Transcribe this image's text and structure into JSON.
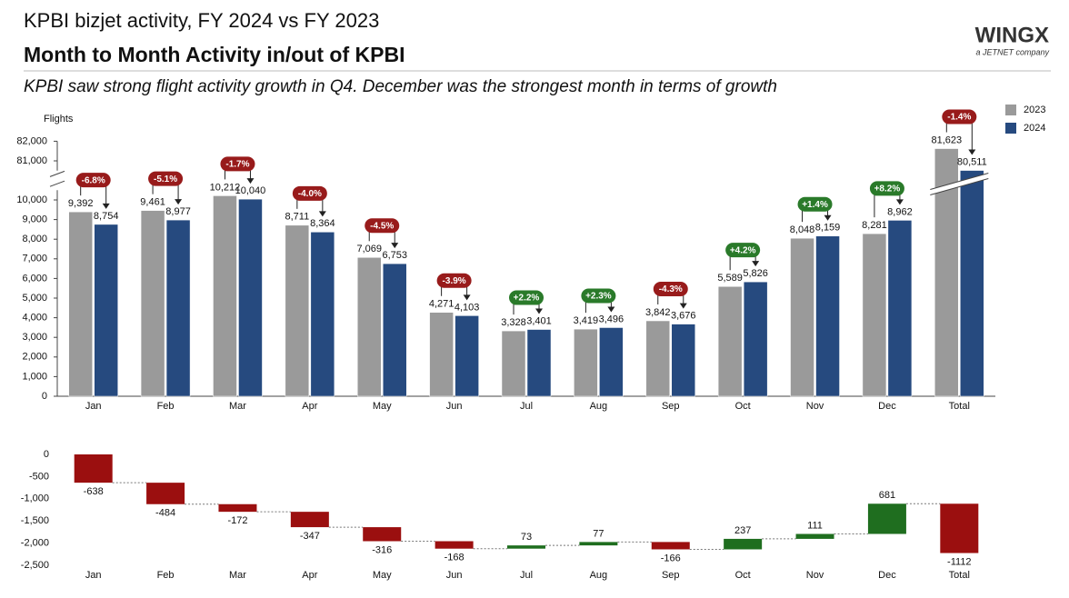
{
  "header": {
    "title": "KPBI bizjet activity, FY 2024 vs FY 2023",
    "subtitle": "Month to Month Activity in/out of KPBI",
    "description": "KPBI saw strong flight activity growth in Q4. December was the strongest month in terms of growth",
    "logo": "WINGX",
    "logo_tagline": "a JETNET company"
  },
  "chart_data": [
    {
      "type": "bar",
      "y_label": "Flights",
      "categories": [
        "Jan",
        "Feb",
        "Mar",
        "Apr",
        "May",
        "Jun",
        "Jul",
        "Aug",
        "Sep",
        "Oct",
        "Nov",
        "Dec",
        "Total"
      ],
      "series": [
        {
          "name": "2023",
          "color": "#9a9a9a",
          "values": [
            9392,
            9461,
            10212,
            8711,
            7069,
            4271,
            3328,
            3419,
            3842,
            5589,
            8048,
            8281,
            81623
          ],
          "value_labels": [
            "9,392",
            "9,461",
            "10,212",
            "8,711",
            "7,069",
            "4,271",
            "3,328",
            "3,419",
            "3,842",
            "5,589",
            "8,048",
            "8,281",
            "81,623"
          ]
        },
        {
          "name": "2024",
          "color": "#264a7f",
          "values": [
            8754,
            8977,
            10040,
            8364,
            6753,
            4103,
            3401,
            3496,
            3676,
            5826,
            8159,
            8962,
            80511
          ],
          "value_labels": [
            "8,754",
            "8,977",
            "10,040",
            "8,364",
            "6,753",
            "4,103",
            "3,401",
            "3,496",
            "3,676",
            "5,826",
            "8,159",
            "8,962",
            "80,511"
          ]
        }
      ],
      "changes": [
        -6.8,
        -5.1,
        -1.7,
        -4.0,
        -4.5,
        -3.9,
        2.2,
        2.3,
        -4.3,
        4.2,
        1.4,
        8.2,
        -1.4
      ],
      "change_labels": [
        "-6.8%",
        "-5.1%",
        "-1.7%",
        "-4.0%",
        "-4.5%",
        "-3.9%",
        "+2.2%",
        "+2.3%",
        "-4.3%",
        "+4.2%",
        "+1.4%",
        "+8.2%",
        "-1.4%"
      ],
      "positive_color": "#2a7a2a",
      "negative_color": "#981b1b",
      "ylim": [
        0,
        82000
      ],
      "axis_break": [
        10500,
        80500
      ],
      "yticks": [
        0,
        {
          "value": 1000,
          "label": "1,000"
        },
        {
          "value": 2000,
          "label": "2,000"
        },
        {
          "value": 3000,
          "label": "3,000"
        },
        {
          "value": 4000,
          "label": "4,000"
        },
        {
          "value": 5000,
          "label": "5,000"
        },
        {
          "value": 6000,
          "label": "6,000"
        },
        {
          "value": 7000,
          "label": "7,000"
        },
        {
          "value": 8000,
          "label": "8,000"
        },
        {
          "value": 9000,
          "label": "9,000"
        },
        {
          "value": 10000,
          "label": "10,000"
        },
        {
          "value": 81000,
          "label": "81,000"
        },
        {
          "value": 82000,
          "label": "82,000"
        }
      ],
      "legend": "top-right",
      "grid": false
    },
    {
      "type": "waterfall",
      "categories": [
        "Jan",
        "Feb",
        "Mar",
        "Apr",
        "May",
        "Jun",
        "Jul",
        "Aug",
        "Sep",
        "Oct",
        "Nov",
        "Dec",
        "Total"
      ],
      "values": [
        -638,
        -484,
        -172,
        -347,
        -316,
        -168,
        73,
        77,
        -166,
        237,
        111,
        681,
        -1112
      ],
      "positive_color": "#1f6e1f",
      "negative_color": "#9b0f0f",
      "ylim": [
        -2500,
        0
      ],
      "yticks": [
        0,
        -500,
        {
          "value": -1000,
          "label": "-1,000"
        },
        {
          "value": -1500,
          "label": "-1,500"
        },
        {
          "value": -2000,
          "label": "-2,000"
        },
        {
          "value": -2500,
          "label": "-2,500"
        }
      ],
      "grid": false
    }
  ]
}
